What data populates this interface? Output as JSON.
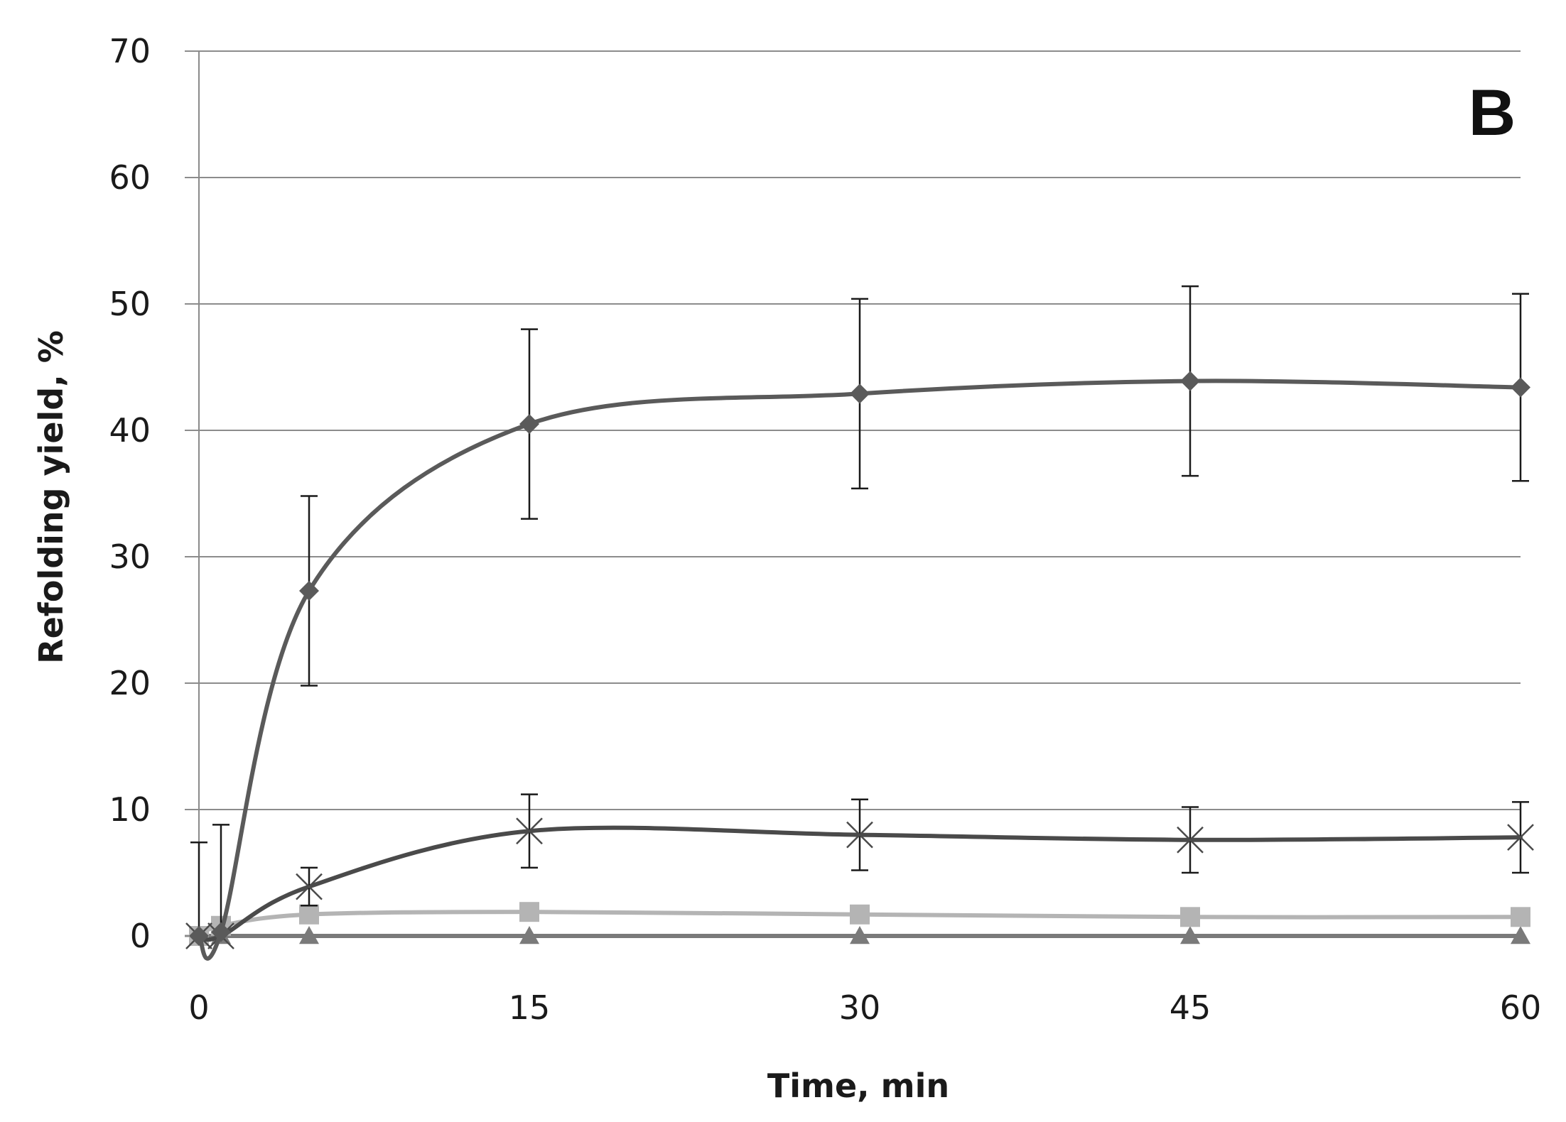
{
  "chart_data": {
    "type": "line",
    "panel_label": "B",
    "xlabel": "Time, min",
    "ylabel": "Refolding yield, %",
    "xlim": [
      0,
      60
    ],
    "ylim": [
      0,
      70
    ],
    "xticks": [
      0,
      15,
      30,
      45,
      60
    ],
    "yticks": [
      0,
      10,
      20,
      30,
      40,
      50,
      60,
      70
    ],
    "xtick_labels": [
      "0",
      "15",
      "30",
      "45",
      "60"
    ],
    "ytick_labels": [
      "0",
      "10",
      "20",
      "30",
      "40",
      "50",
      "60",
      "70"
    ],
    "grid": "horizontal",
    "legend": "none",
    "x": [
      0,
      1,
      5,
      15,
      30,
      45,
      60
    ],
    "series": [
      {
        "marker": "diamond",
        "color": "#5a5a5a",
        "values": [
          0,
          0.3,
          27.3,
          40.5,
          42.9,
          43.9,
          43.4
        ],
        "errors": [
          7.4,
          8.5,
          7.5,
          7.5,
          7.5,
          7.5,
          7.4
        ]
      },
      {
        "marker": "x",
        "color": "#4a4a4a",
        "values": [
          0,
          0,
          3.9,
          8.3,
          8.0,
          7.6,
          7.8
        ],
        "errors": [
          0,
          0,
          1.5,
          2.9,
          2.8,
          2.6,
          2.8
        ]
      },
      {
        "marker": "square",
        "color": "#b4b4b4",
        "values": [
          0,
          0.8,
          1.7,
          1.9,
          1.7,
          1.5,
          1.5
        ],
        "errors": [
          0,
          0,
          0,
          0,
          0,
          0,
          0
        ]
      },
      {
        "marker": "triangle",
        "color": "#7a7a7a",
        "values": [
          0,
          0,
          0,
          0,
          0,
          0,
          0
        ],
        "errors": [
          0,
          0,
          0,
          0,
          0,
          0,
          0
        ]
      }
    ]
  }
}
